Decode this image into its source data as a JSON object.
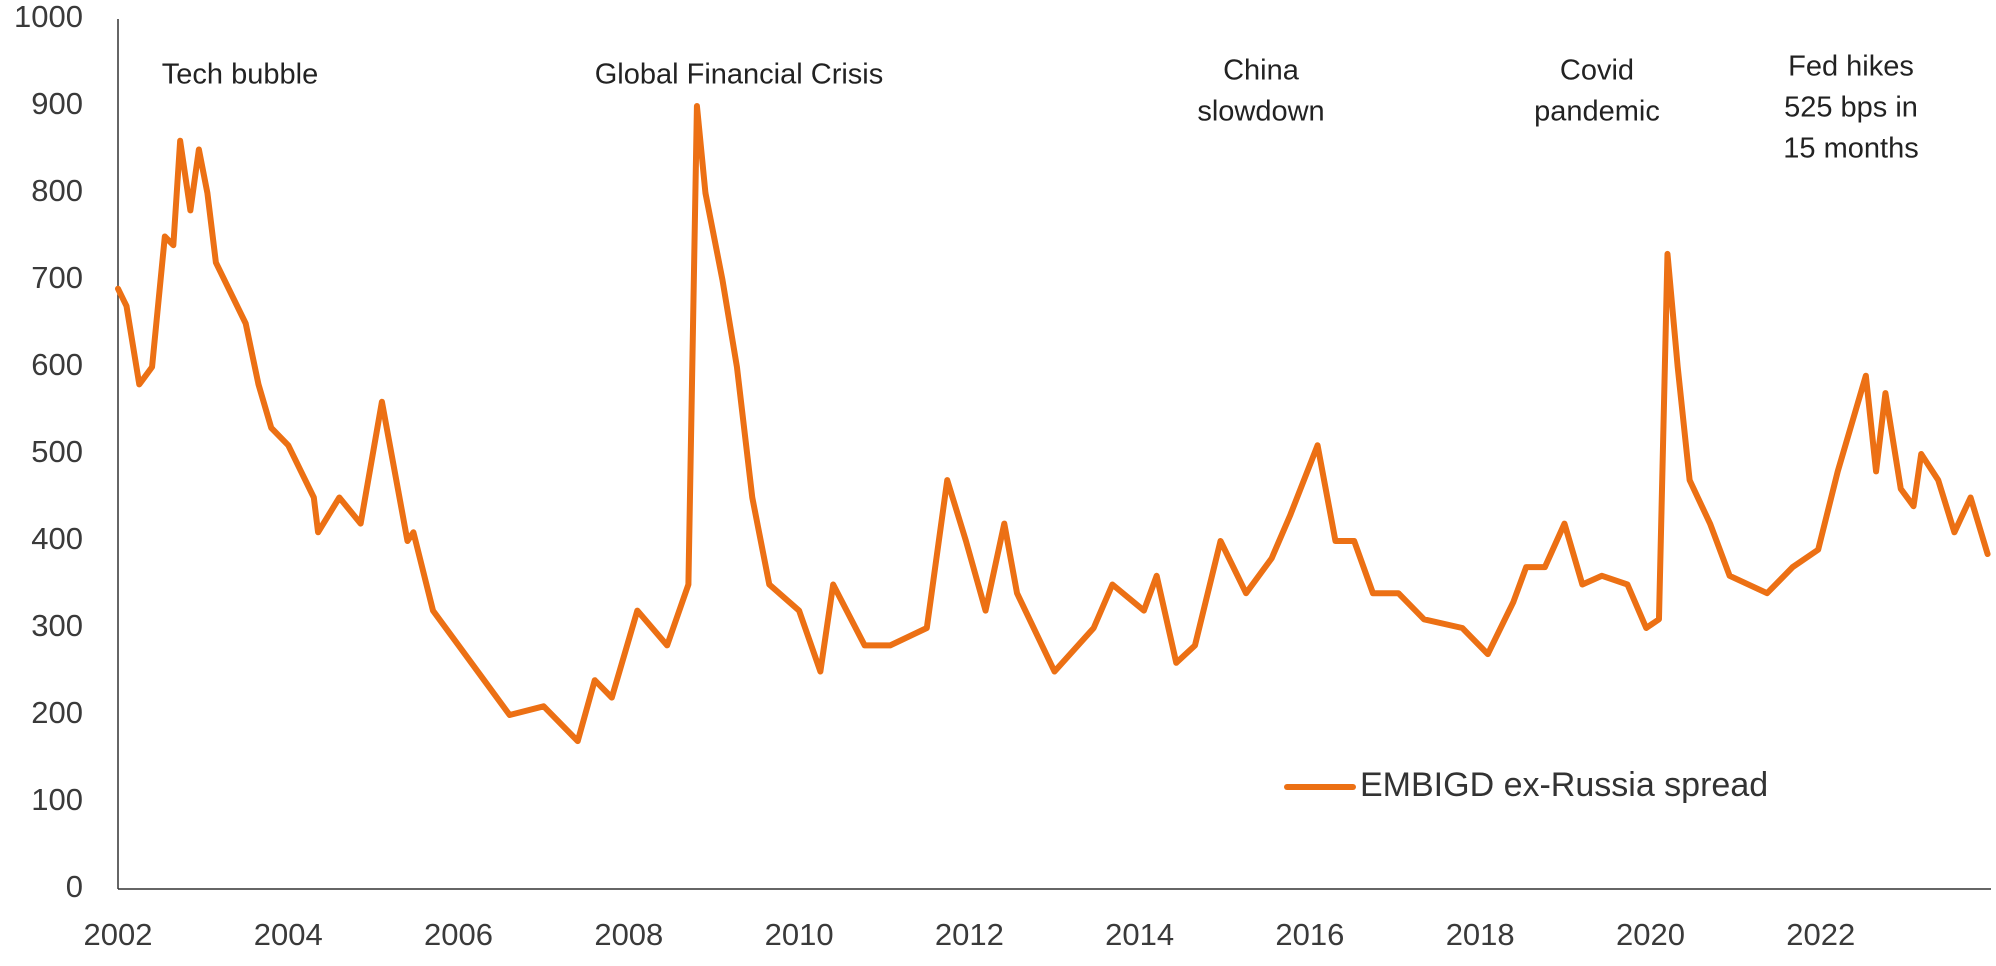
{
  "chart_data": {
    "type": "line",
    "x": [
      2002.0,
      2002.1,
      2002.25,
      2002.4,
      2002.55,
      2002.65,
      2002.73,
      2002.85,
      2002.95,
      2003.05,
      2003.15,
      2003.3,
      2003.5,
      2003.65,
      2003.8,
      2004.0,
      2004.15,
      2004.3,
      2004.35,
      2004.6,
      2004.85,
      2005.1,
      2005.4,
      2005.47,
      2005.7,
      2006.0,
      2006.3,
      2006.6,
      2007.0,
      2007.4,
      2007.6,
      2007.8,
      2008.1,
      2008.45,
      2008.7,
      2008.8,
      2008.9,
      2009.1,
      2009.27,
      2009.45,
      2009.65,
      2010.0,
      2010.25,
      2010.4,
      2010.77,
      2011.07,
      2011.5,
      2011.74,
      2011.96,
      2012.19,
      2012.41,
      2012.56,
      2013.0,
      2013.46,
      2013.68,
      2014.05,
      2014.2,
      2014.43,
      2014.65,
      2014.95,
      2015.25,
      2015.55,
      2015.77,
      2016.09,
      2016.3,
      2016.52,
      2016.74,
      2017.04,
      2017.34,
      2017.79,
      2018.09,
      2018.39,
      2018.54,
      2018.76,
      2018.99,
      2019.2,
      2019.43,
      2019.73,
      2019.95,
      2020.1,
      2020.2,
      2020.32,
      2020.46,
      2020.7,
      2020.93,
      2021.37,
      2021.67,
      2021.97,
      2022.2,
      2022.53,
      2022.65,
      2022.76,
      2022.94,
      2023.09,
      2023.18,
      2023.38,
      2023.57,
      2023.76,
      2023.96
    ],
    "series": [
      {
        "name": "EMBIGD ex-Russia spread",
        "color": "#ec7014",
        "values": [
          690,
          670,
          580,
          600,
          750,
          740,
          860,
          780,
          850,
          800,
          720,
          690,
          650,
          580,
          530,
          510,
          480,
          450,
          410,
          450,
          420,
          560,
          400,
          410,
          320,
          280,
          240,
          200,
          210,
          170,
          240,
          220,
          320,
          280,
          350,
          900,
          800,
          700,
          600,
          450,
          350,
          320,
          250,
          350,
          280,
          280,
          300,
          470,
          400,
          320,
          420,
          340,
          250,
          300,
          350,
          320,
          360,
          260,
          280,
          400,
          340,
          380,
          430,
          510,
          400,
          400,
          340,
          340,
          310,
          300,
          270,
          330,
          370,
          370,
          420,
          350,
          360,
          350,
          300,
          310,
          730,
          600,
          470,
          420,
          360,
          340,
          370,
          390,
          480,
          590,
          480,
          570,
          460,
          440,
          500,
          470,
          410,
          450,
          385
        ]
      }
    ],
    "xlim": [
      2002,
      2024
    ],
    "xticks": [
      2002,
      2004,
      2006,
      2008,
      2010,
      2012,
      2014,
      2016,
      2018,
      2020,
      2022
    ],
    "ylim": [
      0,
      1000
    ],
    "yticks": [
      0,
      100,
      200,
      300,
      400,
      500,
      600,
      700,
      800,
      900,
      1000
    ],
    "grid": false,
    "legend": "lower right",
    "annotations": [
      [
        "Tech bubble"
      ],
      [
        "Global Financial Crisis"
      ],
      [
        "China",
        "slowdown"
      ],
      [
        "Covid",
        "pandemic"
      ],
      [
        "Fed hikes",
        "525 bps in",
        "15 months"
      ]
    ]
  }
}
